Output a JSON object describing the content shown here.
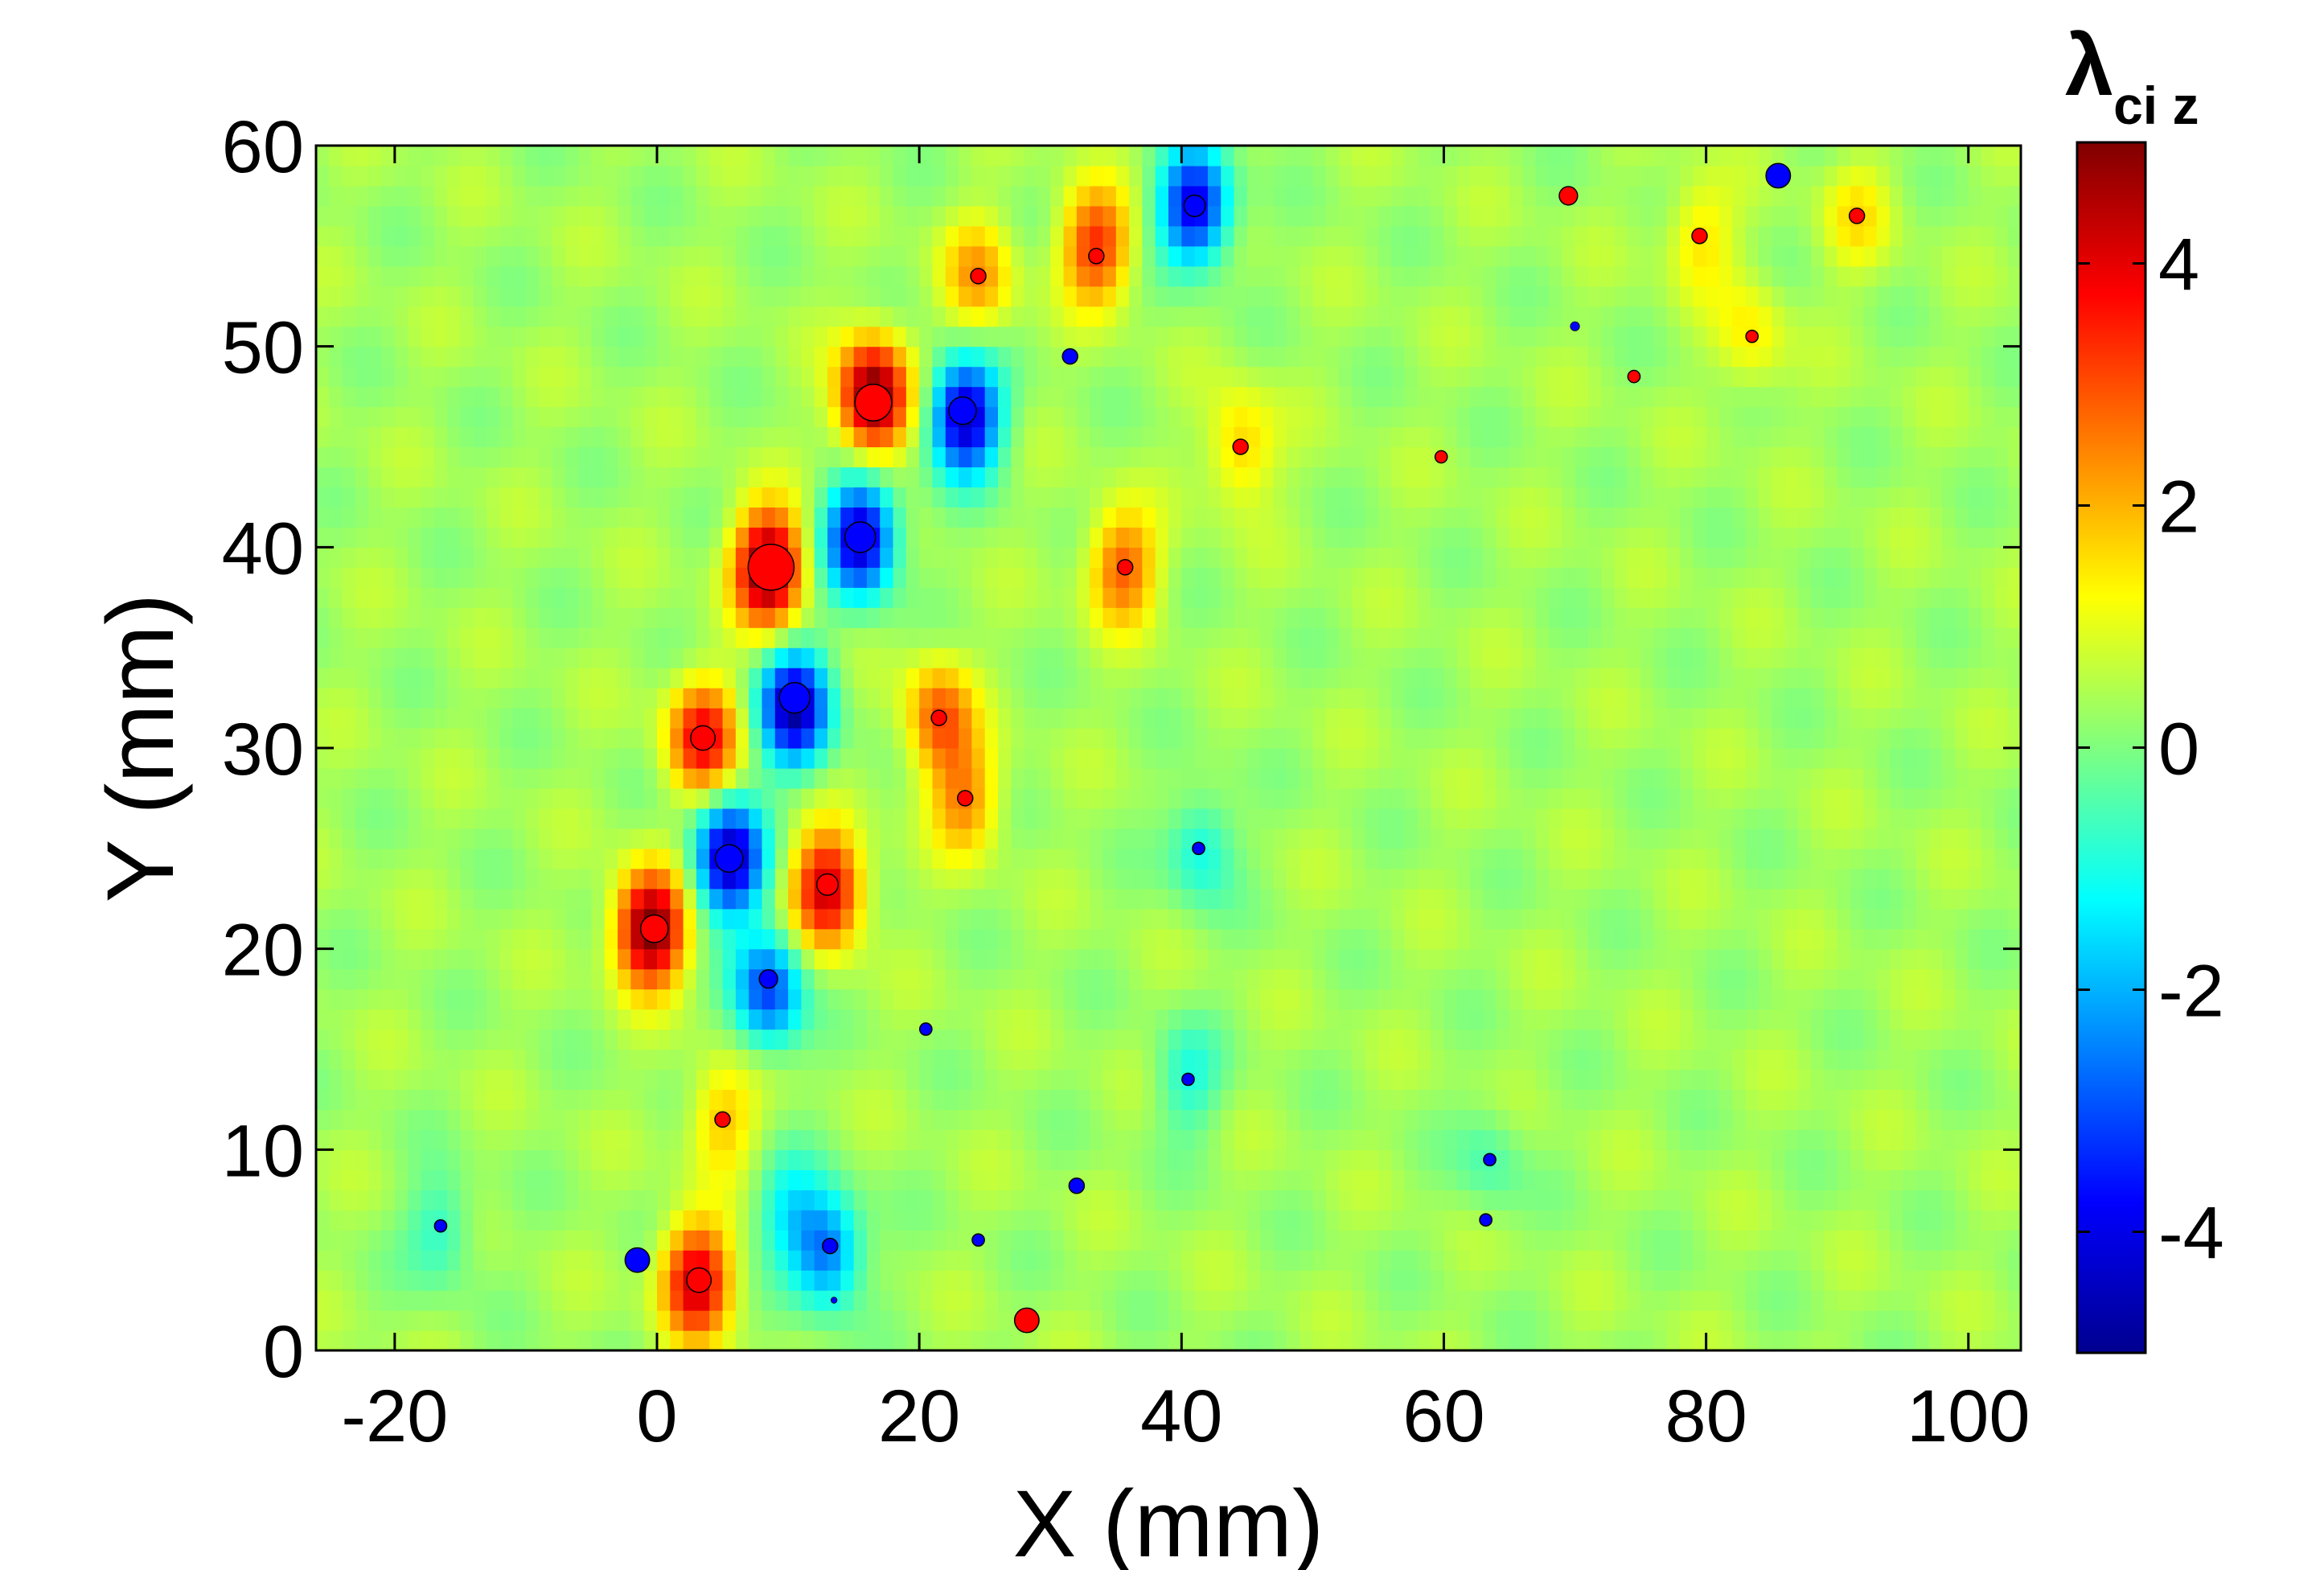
{
  "chart_data": {
    "type": "heatmap",
    "title": "",
    "xlabel": "X (mm)",
    "ylabel": "Y (mm)",
    "xlim": [
      -26,
      104
    ],
    "ylim": [
      0,
      60
    ],
    "xticks": [
      -20,
      0,
      20,
      40,
      60,
      80,
      100
    ],
    "yticks": [
      0,
      10,
      20,
      30,
      40,
      50,
      60
    ],
    "colorbar": {
      "label_main": "λ",
      "label_sub": "ci z",
      "range": [
        -5,
        5
      ],
      "ticks": [
        -4,
        -2,
        0,
        2,
        4
      ],
      "colormap": "jet",
      "colors": [
        "#00008f",
        "#0000ff",
        "#00ffff",
        "#7fff7f",
        "#ffff00",
        "#ff0000",
        "#800000"
      ]
    },
    "background_value": 0.35,
    "blobs": [
      {
        "x": -0.5,
        "y": 21,
        "v": 5
      },
      {
        "x": 5.5,
        "y": 24.5,
        "v": -5
      },
      {
        "x": 13,
        "y": 23,
        "v": 4
      },
      {
        "x": 8.5,
        "y": 18,
        "v": -3.5
      },
      {
        "x": 3.5,
        "y": 30.5,
        "v": 3.5
      },
      {
        "x": 10.5,
        "y": 32,
        "v": -5
      },
      {
        "x": 21.5,
        "y": 31.5,
        "v": 2.5
      },
      {
        "x": 23.5,
        "y": 27.5,
        "v": 2
      },
      {
        "x": 8.5,
        "y": 39,
        "v": 5
      },
      {
        "x": 15.5,
        "y": 40.5,
        "v": -5
      },
      {
        "x": 16.5,
        "y": 47.5,
        "v": 5
      },
      {
        "x": 23.5,
        "y": 46.5,
        "v": -5
      },
      {
        "x": 35.5,
        "y": 39,
        "v": 2.5
      },
      {
        "x": 33.5,
        "y": 55,
        "v": 3
      },
      {
        "x": 24.5,
        "y": 53.5,
        "v": 1.8
      },
      {
        "x": 41,
        "y": 57,
        "v": -4.5
      },
      {
        "x": 44.5,
        "y": 45,
        "v": 1.5
      },
      {
        "x": 5,
        "y": 11.5,
        "v": 1.5
      },
      {
        "x": 3,
        "y": 3.5,
        "v": 4
      },
      {
        "x": 13,
        "y": 5,
        "v": -3
      },
      {
        "x": 10,
        "y": 7,
        "v": -1.5
      },
      {
        "x": 41.5,
        "y": 25,
        "v": -1.5
      },
      {
        "x": 40.5,
        "y": 13.5,
        "v": -1.2
      },
      {
        "x": 79.5,
        "y": 55.5,
        "v": 1.2
      },
      {
        "x": 83.5,
        "y": 50.5,
        "v": 1
      },
      {
        "x": 91.5,
        "y": 56.5,
        "v": 1
      },
      {
        "x": -16.5,
        "y": 6,
        "v": -1.2
      },
      {
        "x": 63.5,
        "y": 9.5,
        "v": -0.8
      }
    ],
    "markers": [
      {
        "x": 16.5,
        "y": 47.2,
        "size": 12,
        "sign": "pos"
      },
      {
        "x": 8.7,
        "y": 39,
        "size": 15,
        "sign": "pos"
      },
      {
        "x": 23.3,
        "y": 46.8,
        "size": 9,
        "sign": "neg"
      },
      {
        "x": 15.5,
        "y": 40.5,
        "size": 10,
        "sign": "neg"
      },
      {
        "x": 10.5,
        "y": 32.5,
        "size": 10,
        "sign": "neg"
      },
      {
        "x": 3.5,
        "y": 30.5,
        "size": 8,
        "sign": "pos"
      },
      {
        "x": 21.5,
        "y": 31.5,
        "size": 5,
        "sign": "pos"
      },
      {
        "x": 23.5,
        "y": 27.5,
        "size": 5,
        "sign": "pos"
      },
      {
        "x": 5.5,
        "y": 24.5,
        "size": 9,
        "sign": "neg"
      },
      {
        "x": 13,
        "y": 23.2,
        "size": 7,
        "sign": "pos"
      },
      {
        "x": -0.2,
        "y": 21,
        "size": 9,
        "sign": "pos"
      },
      {
        "x": 8.5,
        "y": 18.5,
        "size": 6,
        "sign": "neg"
      },
      {
        "x": 5,
        "y": 11.5,
        "size": 5,
        "sign": "pos"
      },
      {
        "x": 3.2,
        "y": 3.5,
        "size": 8,
        "sign": "pos"
      },
      {
        "x": -1.5,
        "y": 4.5,
        "size": 8,
        "sign": "neg"
      },
      {
        "x": 13.2,
        "y": 5.2,
        "size": 5,
        "sign": "neg"
      },
      {
        "x": 13.5,
        "y": 2.5,
        "size": 2,
        "sign": "neg"
      },
      {
        "x": 24.5,
        "y": 5.5,
        "size": 4,
        "sign": "neg"
      },
      {
        "x": 28.2,
        "y": 1.5,
        "size": 8,
        "sign": "pos"
      },
      {
        "x": 32,
        "y": 8.2,
        "size": 5,
        "sign": "neg"
      },
      {
        "x": 20.5,
        "y": 16,
        "size": 4,
        "sign": "neg"
      },
      {
        "x": -16.5,
        "y": 6.2,
        "size": 4,
        "sign": "neg"
      },
      {
        "x": 40.5,
        "y": 13.5,
        "size": 4,
        "sign": "neg"
      },
      {
        "x": 41.3,
        "y": 25,
        "size": 4,
        "sign": "neg"
      },
      {
        "x": 35.7,
        "y": 39,
        "size": 5,
        "sign": "pos"
      },
      {
        "x": 44.5,
        "y": 45,
        "size": 5,
        "sign": "pos"
      },
      {
        "x": 31.5,
        "y": 49.5,
        "size": 5,
        "sign": "neg"
      },
      {
        "x": 24.5,
        "y": 53.5,
        "size": 5,
        "sign": "pos"
      },
      {
        "x": 33.5,
        "y": 54.5,
        "size": 5,
        "sign": "pos"
      },
      {
        "x": 41,
        "y": 57,
        "size": 7,
        "sign": "neg"
      },
      {
        "x": 59.8,
        "y": 44.5,
        "size": 4,
        "sign": "pos"
      },
      {
        "x": 63.5,
        "y": 9.5,
        "size": 4,
        "sign": "neg"
      },
      {
        "x": 63.2,
        "y": 6.5,
        "size": 4,
        "sign": "neg"
      },
      {
        "x": 69.5,
        "y": 57.5,
        "size": 6,
        "sign": "pos"
      },
      {
        "x": 70,
        "y": 51,
        "size": 3,
        "sign": "neg"
      },
      {
        "x": 74.5,
        "y": 48.5,
        "size": 4,
        "sign": "pos"
      },
      {
        "x": 79.5,
        "y": 55.5,
        "size": 5,
        "sign": "pos"
      },
      {
        "x": 83.5,
        "y": 50.5,
        "size": 4,
        "sign": "pos"
      },
      {
        "x": 85.5,
        "y": 58.5,
        "size": 8,
        "sign": "neg"
      },
      {
        "x": 91.5,
        "y": 56.5,
        "size": 5,
        "sign": "pos"
      }
    ]
  }
}
